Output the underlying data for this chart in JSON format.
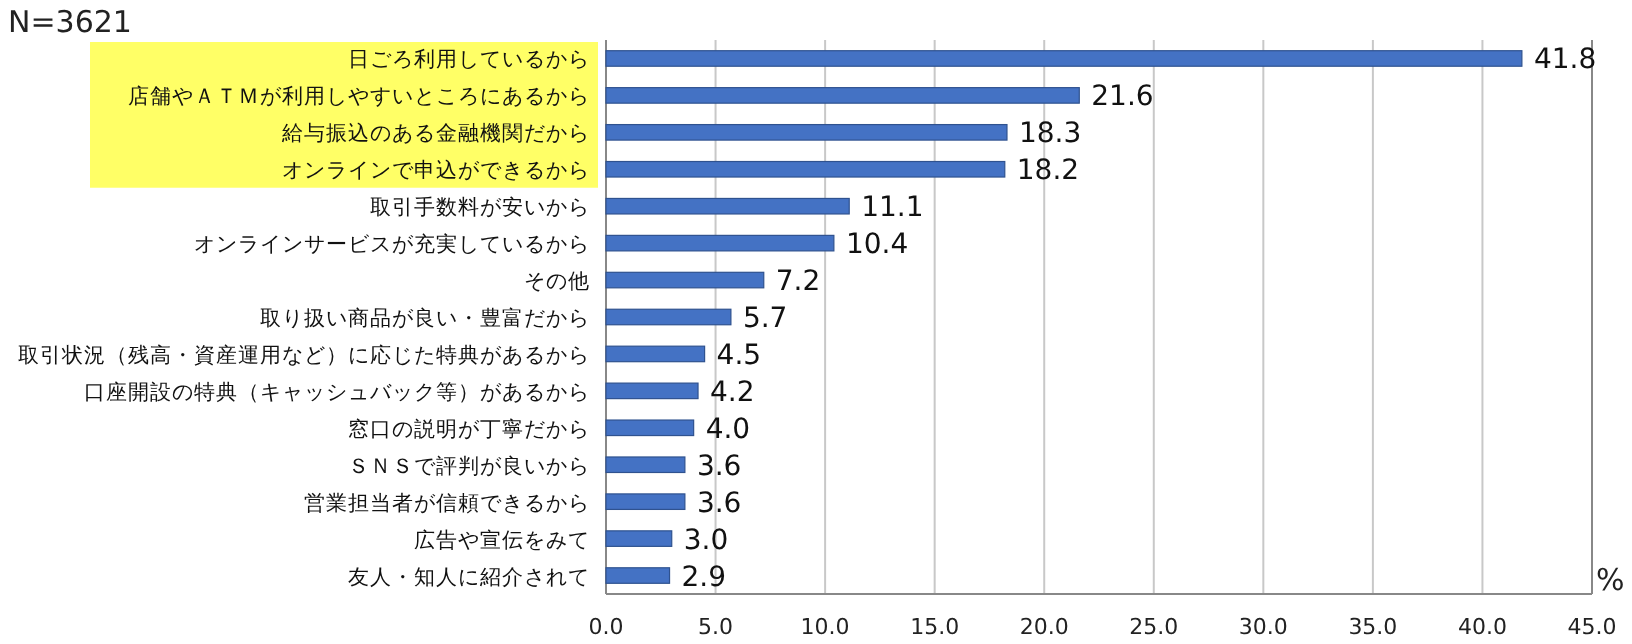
{
  "chart_data": {
    "type": "bar",
    "orientation": "horizontal",
    "title": "N=3621",
    "xlabel": "%",
    "categories": [
      "日ごろ利用しているから",
      "店舗やＡＴＭが利用しやすいところにあるから",
      "給与振込のある金融機関だから",
      "オンラインで申込ができるから",
      "取引手数料が安いから",
      "オンラインサービスが充実しているから",
      "その他",
      "取り扱い商品が良い・豊富だから",
      "取引状況（残高・資産運用など）に応じた特典があるから",
      "口座開設の特典（キャッシュバック等）があるから",
      "窓口の説明が丁寧だから",
      "ＳＮＳで評判が良いから",
      "営業担当者が信頼できるから",
      "広告や宣伝をみて",
      "友人・知人に紹介されて"
    ],
    "values": [
      41.8,
      21.6,
      18.3,
      18.2,
      11.1,
      10.4,
      7.2,
      5.7,
      4.5,
      4.2,
      4.0,
      3.6,
      3.6,
      3.0,
      2.9
    ],
    "value_labels": [
      "41.8",
      "21.6",
      "18.3",
      "18.2",
      "11.1",
      "10.4",
      "7.2",
      "5.7",
      "4.5",
      "4.2",
      "4.0",
      "3.6",
      "3.6",
      "3.0",
      "2.9"
    ],
    "color": "#4472c4",
    "xlim": [
      0,
      45
    ],
    "xticks": [
      {
        "value": 0,
        "label": "0.0"
      },
      {
        "value": 5,
        "label": "5.0"
      },
      {
        "value": 10,
        "label": "10.0"
      },
      {
        "value": 15,
        "label": "15.0"
      },
      {
        "value": 20,
        "label": "20.0"
      },
      {
        "value": 25,
        "label": "25.0"
      },
      {
        "value": 30,
        "label": "30.0"
      },
      {
        "value": 35,
        "label": "35.0"
      },
      {
        "value": 40,
        "label": "40.0"
      },
      {
        "value": 45,
        "label": "45.0"
      }
    ],
    "grid": "x"
  }
}
